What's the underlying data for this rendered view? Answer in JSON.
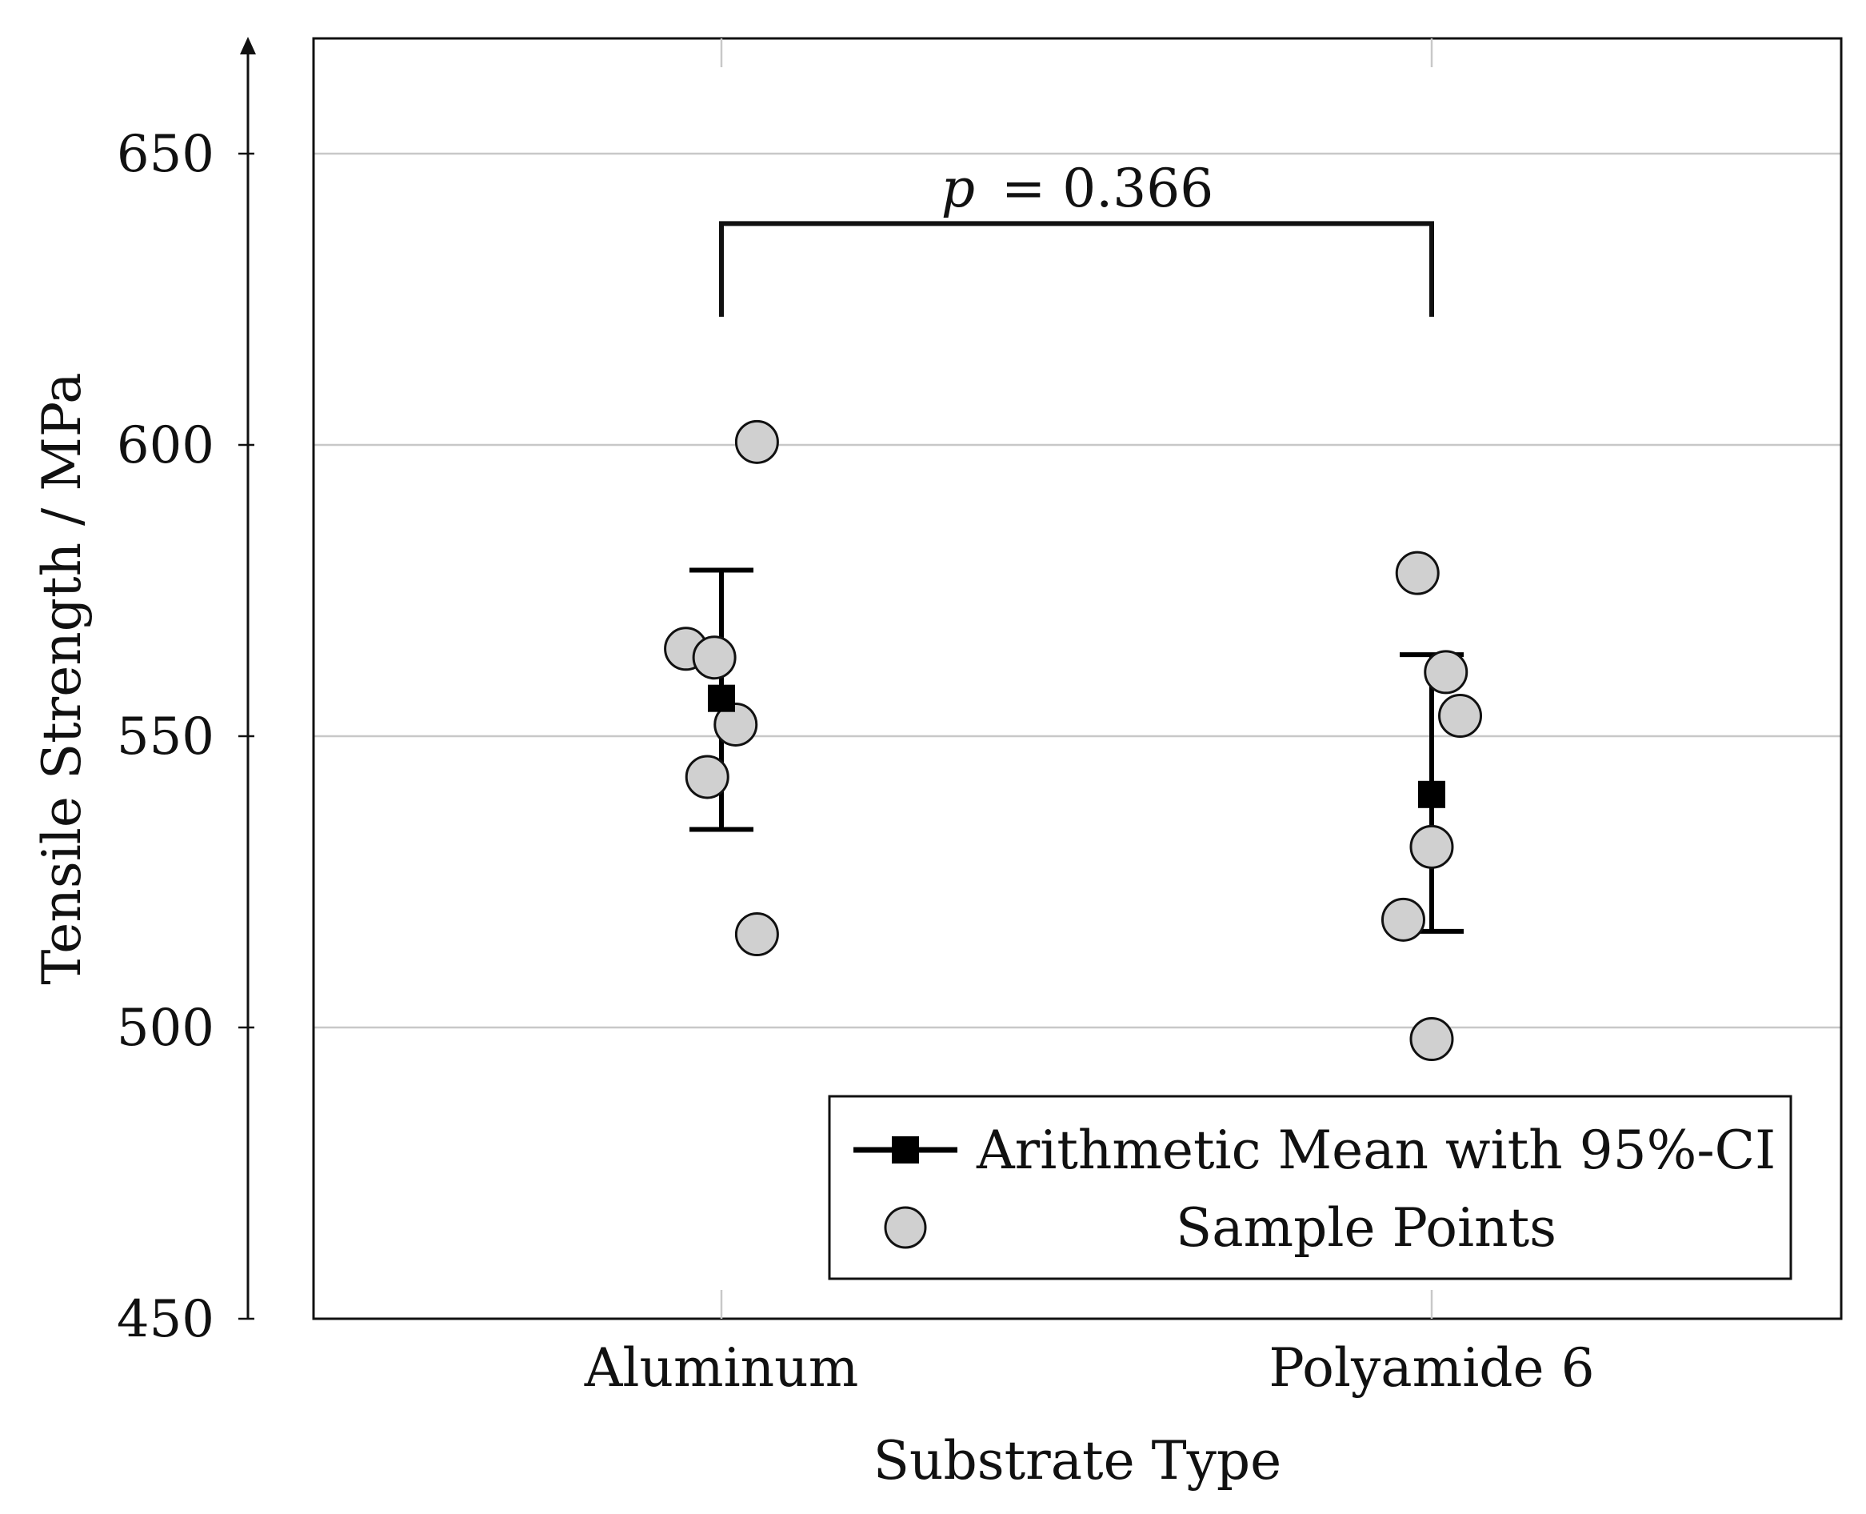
{
  "chart_data": {
    "type": "scatter",
    "title": "",
    "xlabel": "Substrate Type",
    "ylabel": "Tensile Strength / MPa",
    "ylim": [
      450,
      670
    ],
    "yticks": [
      450,
      500,
      550,
      600,
      650
    ],
    "grid": true,
    "categories": [
      "Aluminum",
      "Polyamide 6"
    ],
    "series": [
      {
        "name": "Arithmetic Mean with 95%-CI",
        "marker": "square",
        "values": [
          {
            "category": "Aluminum",
            "mean": 556.5,
            "ci_low": 534,
            "ci_high": 578.5
          },
          {
            "category": "Polyamide 6",
            "mean": 540,
            "ci_low": 516.5,
            "ci_high": 564
          }
        ]
      },
      {
        "name": "Sample Points",
        "marker": "circle",
        "values": [
          {
            "category": "Aluminum",
            "jitter": -0.05,
            "y": 565
          },
          {
            "category": "Aluminum",
            "jitter": -0.01,
            "y": 563.5
          },
          {
            "category": "Aluminum",
            "jitter": 0.02,
            "y": 552
          },
          {
            "category": "Aluminum",
            "jitter": -0.02,
            "y": 543
          },
          {
            "category": "Aluminum",
            "jitter": 0.05,
            "y": 600.5
          },
          {
            "category": "Aluminum",
            "jitter": 0.05,
            "y": 516
          },
          {
            "category": "Polyamide 6",
            "jitter": -0.02,
            "y": 578
          },
          {
            "category": "Polyamide 6",
            "jitter": 0.02,
            "y": 561
          },
          {
            "category": "Polyamide 6",
            "jitter": 0.04,
            "y": 553.5
          },
          {
            "category": "Polyamide 6",
            "jitter": 0.0,
            "y": 531
          },
          {
            "category": "Polyamide 6",
            "jitter": -0.04,
            "y": 518.5
          },
          {
            "category": "Polyamide 6",
            "jitter": 0.0,
            "y": 498
          }
        ]
      }
    ],
    "annotation": {
      "p_symbol": "p",
      "p_text": "= 0.366",
      "bracket_y": 638,
      "bracket_bottom": 622
    },
    "legend": {
      "position": "bottom-right",
      "entries": [
        "Arithmetic Mean with 95%-CI",
        "Sample Points"
      ]
    },
    "colors": {
      "point_fill": "#d0d0d0",
      "point_stroke": "#111111",
      "mean": "#000000",
      "grid": "#c8c8c8"
    }
  }
}
